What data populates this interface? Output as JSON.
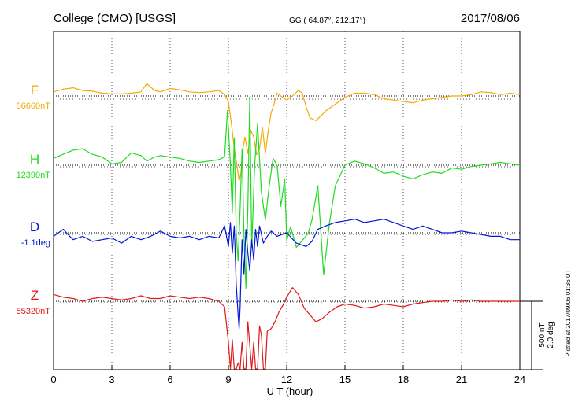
{
  "header": {
    "station": "College (CMO)  [USGS]",
    "coords": "GG ( 64.87°, 212.17°)",
    "date": "2017/08/06"
  },
  "side_note": "Plotted at 2017/09/06 01:36 UT",
  "scale_bar": {
    "nt_label": "500 nT",
    "deg_label": "2.0 deg"
  },
  "chart_data": {
    "type": "line",
    "xlabel": "U T (hour)",
    "xlim": [
      0,
      24
    ],
    "xticks": [
      0,
      3,
      6,
      9,
      12,
      15,
      18,
      21,
      24
    ],
    "grid": true,
    "scale": {
      "nT_per_bar": 500,
      "deg_per_bar": 2.0
    },
    "series": [
      {
        "name": "F",
        "baseline_label": "56660nT",
        "baseline": 56660,
        "unit": "nT",
        "color": "#f5a800",
        "x": [
          0,
          0.5,
          1,
          1.5,
          2,
          2.5,
          3,
          3.5,
          4,
          4.5,
          4.8,
          5.2,
          5.5,
          6,
          6.5,
          7,
          7.5,
          8,
          8.5,
          8.8,
          9,
          9.15,
          9.3,
          9.45,
          9.55,
          9.65,
          9.75,
          9.85,
          10,
          10.15,
          10.3,
          10.45,
          10.6,
          10.75,
          10.9,
          11.05,
          11.2,
          11.35,
          11.5,
          11.7,
          12,
          12.3,
          12.6,
          12.8,
          13,
          13.2,
          13.5,
          13.8,
          14,
          14.5,
          15,
          15.5,
          16,
          16.5,
          17,
          17.5,
          18,
          18.5,
          19,
          19.5,
          20,
          20.5,
          21,
          21.5,
          22,
          22.5,
          23,
          23.5,
          24
        ],
        "values": [
          30,
          50,
          60,
          40,
          35,
          20,
          15,
          15,
          20,
          30,
          90,
          40,
          30,
          55,
          45,
          30,
          25,
          30,
          40,
          10,
          -40,
          -200,
          -380,
          -520,
          -620,
          -560,
          -380,
          -300,
          -420,
          -250,
          -300,
          -430,
          -380,
          -230,
          -420,
          -250,
          -120,
          -60,
          20,
          0,
          -30,
          0,
          40,
          20,
          -80,
          -160,
          -180,
          -140,
          -110,
          -60,
          -10,
          20,
          20,
          10,
          -20,
          -30,
          -40,
          -50,
          -30,
          -20,
          -10,
          0,
          0,
          10,
          30,
          25,
          10,
          20,
          10
        ]
      },
      {
        "name": "H",
        "baseline_label": "12390nT",
        "baseline": 12390,
        "unit": "nT",
        "color": "#1fdc1f",
        "x": [
          0,
          0.5,
          1,
          1.5,
          2,
          2.5,
          3,
          3.5,
          4,
          4.5,
          4.8,
          5.2,
          5.5,
          6,
          6.5,
          7,
          7.5,
          8,
          8.5,
          8.8,
          8.95,
          9.1,
          9.2,
          9.3,
          9.4,
          9.5,
          9.6,
          9.7,
          9.8,
          9.9,
          10,
          10.1,
          10.2,
          10.35,
          10.5,
          10.7,
          10.9,
          11.1,
          11.3,
          11.5,
          11.7,
          11.9,
          12,
          12.2,
          12.5,
          12.8,
          13.1,
          13.3,
          13.6,
          13.9,
          14.2,
          14.5,
          15,
          15.5,
          16,
          16.5,
          17,
          17.5,
          18,
          18.5,
          19,
          19.5,
          20,
          20.5,
          21,
          21.5,
          22,
          22.5,
          23,
          23.5,
          24
        ],
        "values": [
          50,
          80,
          110,
          120,
          80,
          60,
          10,
          20,
          90,
          70,
          30,
          60,
          70,
          60,
          50,
          30,
          20,
          30,
          40,
          60,
          400,
          0,
          -350,
          200,
          -500,
          -700,
          -330,
          120,
          -500,
          -900,
          -300,
          500,
          -600,
          0,
          300,
          -200,
          -400,
          -150,
          50,
          0,
          -300,
          -100,
          -550,
          -450,
          -600,
          -550,
          -500,
          -400,
          -150,
          -800,
          -420,
          -150,
          0,
          30,
          10,
          -20,
          -60,
          -50,
          -80,
          -100,
          -70,
          -50,
          -60,
          -20,
          -30,
          -10,
          0,
          10,
          20,
          10,
          0
        ]
      },
      {
        "name": "D",
        "baseline_label": "-1.1deg",
        "baseline": -1.1,
        "unit": "deg",
        "color": "#0018d8",
        "x": [
          0,
          0.5,
          1,
          1.5,
          2,
          2.5,
          3,
          3.5,
          4,
          4.5,
          5,
          5.5,
          6,
          6.5,
          7,
          7.5,
          8,
          8.5,
          8.8,
          9,
          9.1,
          9.2,
          9.3,
          9.4,
          9.5,
          9.55,
          9.6,
          9.7,
          9.8,
          9.9,
          10,
          10.1,
          10.2,
          10.3,
          10.4,
          10.5,
          10.6,
          10.8,
          11,
          11.2,
          11.5,
          12,
          12.5,
          13,
          13.3,
          13.6,
          14,
          14.5,
          15,
          15.5,
          16,
          16.5,
          17,
          17.5,
          18,
          18.5,
          19,
          19.5,
          20,
          20.5,
          21,
          21.5,
          22,
          22.5,
          23,
          23.5,
          24
        ],
        "values": [
          -0.1,
          0.1,
          -0.2,
          -0.1,
          -0.25,
          -0.2,
          -0.15,
          -0.3,
          -0.1,
          -0.2,
          -0.1,
          0.05,
          -0.1,
          -0.15,
          -0.1,
          -0.2,
          -0.1,
          -0.15,
          0.2,
          -0.4,
          0.3,
          -0.6,
          0.2,
          -1.5,
          -2.4,
          -2.8,
          -2.2,
          -0.2,
          -1.2,
          0.1,
          -0.6,
          -1.1,
          -0.2,
          -0.8,
          0.1,
          -0.4,
          0.2,
          -0.3,
          -0.1,
          0.05,
          -0.1,
          0,
          -0.3,
          -0.4,
          -0.25,
          0.1,
          0.2,
          0.3,
          0.35,
          0.4,
          0.3,
          0.35,
          0.4,
          0.3,
          0.2,
          0.1,
          0.2,
          0.1,
          0,
          0,
          0.05,
          0,
          -0.05,
          -0.1,
          -0.1,
          -0.2,
          -0.2
        ]
      },
      {
        "name": "Z",
        "baseline_label": "55320nT",
        "baseline": 55320,
        "unit": "nT",
        "color": "#e01818",
        "x": [
          0,
          0.5,
          1,
          1.5,
          2,
          2.5,
          3,
          3.5,
          4,
          4.5,
          5,
          5.5,
          6,
          6.5,
          7,
          7.5,
          8,
          8.5,
          8.8,
          9,
          9.1,
          9.2,
          9.3,
          9.4,
          9.5,
          9.6,
          9.7,
          9.8,
          9.9,
          10,
          10.1,
          10.2,
          10.3,
          10.4,
          10.5,
          10.6,
          10.7,
          10.8,
          10.9,
          11,
          11.2,
          11.4,
          11.6,
          11.8,
          12,
          12.3,
          12.6,
          12.9,
          13.2,
          13.5,
          13.8,
          14.2,
          14.6,
          15,
          15.5,
          16,
          16.5,
          17,
          17.5,
          18,
          18.5,
          19,
          19.5,
          20,
          20.5,
          21,
          21.5,
          22,
          22.5,
          23,
          23.5,
          24
        ],
        "values": [
          50,
          30,
          20,
          0,
          20,
          30,
          20,
          10,
          20,
          40,
          20,
          20,
          40,
          30,
          20,
          30,
          20,
          0,
          -40,
          -300,
          -500,
          -280,
          -700,
          -900,
          -450,
          -1000,
          -300,
          -500,
          -950,
          -150,
          -320,
          -750,
          -300,
          -500,
          -870,
          -180,
          -250,
          -550,
          -700,
          -220,
          -200,
          -150,
          -80,
          -30,
          30,
          100,
          50,
          -50,
          -100,
          -150,
          -130,
          -80,
          -40,
          -20,
          -30,
          -50,
          -40,
          -20,
          -30,
          -40,
          -20,
          -10,
          0,
          0,
          10,
          0,
          10,
          0,
          0,
          0,
          0,
          0
        ]
      }
    ]
  }
}
